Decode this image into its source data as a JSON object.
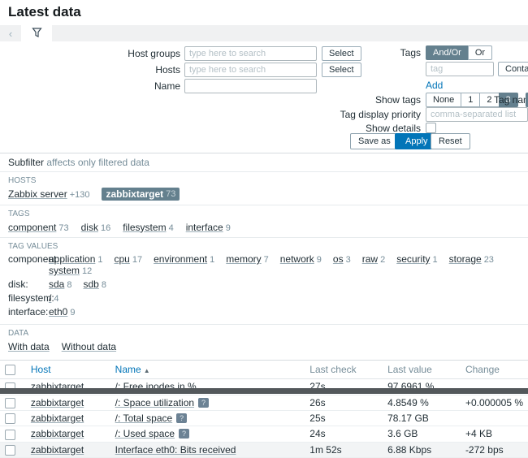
{
  "page": {
    "title": "Latest data"
  },
  "colors": {
    "accent": "#0275b8",
    "selected_segment": "#64808e",
    "muted": "#768d99",
    "dark_text": "#1f2c33"
  },
  "tabbar": {
    "back_icon": "‹",
    "filter_icon": "funnel-icon"
  },
  "filter": {
    "host_groups": {
      "label": "Host groups",
      "placeholder": "type here to search",
      "value": "",
      "select_label": "Select"
    },
    "hosts": {
      "label": "Hosts",
      "placeholder": "type here to search",
      "value": "",
      "select_label": "Select"
    },
    "name": {
      "label": "Name",
      "value": ""
    },
    "tags": {
      "label": "Tags",
      "operators": [
        {
          "label": "And/Or",
          "selected": true
        },
        {
          "label": "Or",
          "selected": false
        }
      ],
      "tag_placeholder": "tag",
      "tag_value": "",
      "match_operator": "Contains",
      "add_label": "Add"
    },
    "show_tags": {
      "label": "Show tags",
      "options": [
        {
          "label": "None",
          "selected": false
        },
        {
          "label": "1",
          "selected": false
        },
        {
          "label": "2",
          "selected": false
        },
        {
          "label": "3",
          "selected": true
        }
      ]
    },
    "tag_name": {
      "label": "Tag name"
    },
    "tag_display_priority": {
      "label": "Tag display priority",
      "placeholder": "comma-separated list",
      "value": ""
    },
    "show_details": {
      "label": "Show details",
      "checked": false
    },
    "buttons": {
      "save_as": "Save as",
      "apply": "Apply",
      "reset": "Reset"
    }
  },
  "subfilter": {
    "title": "Subfilter",
    "subtitle": "affects only filtered data",
    "hosts": {
      "heading": "HOSTS",
      "items": [
        {
          "label": "Zabbix server",
          "count": "+130",
          "selected": false
        },
        {
          "label": "zabbixtarget",
          "count": "73",
          "selected": true
        }
      ]
    },
    "tags": {
      "heading": "TAGS",
      "items": [
        {
          "label": "component",
          "count": "73"
        },
        {
          "label": "disk",
          "count": "16"
        },
        {
          "label": "filesystem",
          "count": "4"
        },
        {
          "label": "interface",
          "count": "9"
        }
      ]
    },
    "tag_values": {
      "heading": "TAG VALUES",
      "groups": [
        {
          "name": "component:",
          "items": [
            {
              "label": "application",
              "count": "1"
            },
            {
              "label": "cpu",
              "count": "17"
            },
            {
              "label": "environment",
              "count": "1"
            },
            {
              "label": "memory",
              "count": "7"
            },
            {
              "label": "network",
              "count": "9"
            },
            {
              "label": "os",
              "count": "3"
            },
            {
              "label": "raw",
              "count": "2"
            },
            {
              "label": "security",
              "count": "1"
            },
            {
              "label": "storage",
              "count": "23"
            },
            {
              "label": "system",
              "count": "12"
            }
          ]
        },
        {
          "name": "disk:",
          "items": [
            {
              "label": "sda",
              "count": "8"
            },
            {
              "label": "sdb",
              "count": "8"
            }
          ]
        },
        {
          "name": "filesystem:",
          "items": [
            {
              "label": "/",
              "count": "4"
            }
          ]
        },
        {
          "name": "interface:",
          "items": [
            {
              "label": "eth0",
              "count": "9"
            }
          ]
        }
      ]
    },
    "data": {
      "heading": "DATA",
      "items": [
        {
          "label": "With data"
        },
        {
          "label": "Without data"
        }
      ]
    }
  },
  "table": {
    "columns": {
      "host": "Host",
      "name": "Name",
      "last_check": "Last check",
      "last_value": "Last value",
      "change": "Change"
    },
    "sort_column": "Name",
    "sort_arrow": "▲",
    "rows": [
      {
        "host": "zabbixtarget",
        "name": "/: Free inodes in %",
        "has_info": false,
        "last_check": "27s",
        "last_value": "97.6961 %",
        "change": ""
      },
      {
        "host": "zabbixtarget",
        "name": "/: Space utilization",
        "has_info": true,
        "last_check": "26s",
        "last_value": "4.8549 %",
        "change": "+0.000005 %"
      },
      {
        "host": "zabbixtarget",
        "name": "/: Total space",
        "has_info": true,
        "last_check": "25s",
        "last_value": "78.17 GB",
        "change": ""
      },
      {
        "host": "zabbixtarget",
        "name": "/: Used space",
        "has_info": true,
        "last_check": "24s",
        "last_value": "3.6 GB",
        "change": "+4 KB"
      },
      {
        "host": "zabbixtarget",
        "name": "Interface eth0: Bits received",
        "has_info": false,
        "last_check": "1m 52s",
        "last_value": "6.88 Kbps",
        "change": "-272 bps",
        "hovered": true
      }
    ],
    "info_badge_glyph": "?"
  }
}
